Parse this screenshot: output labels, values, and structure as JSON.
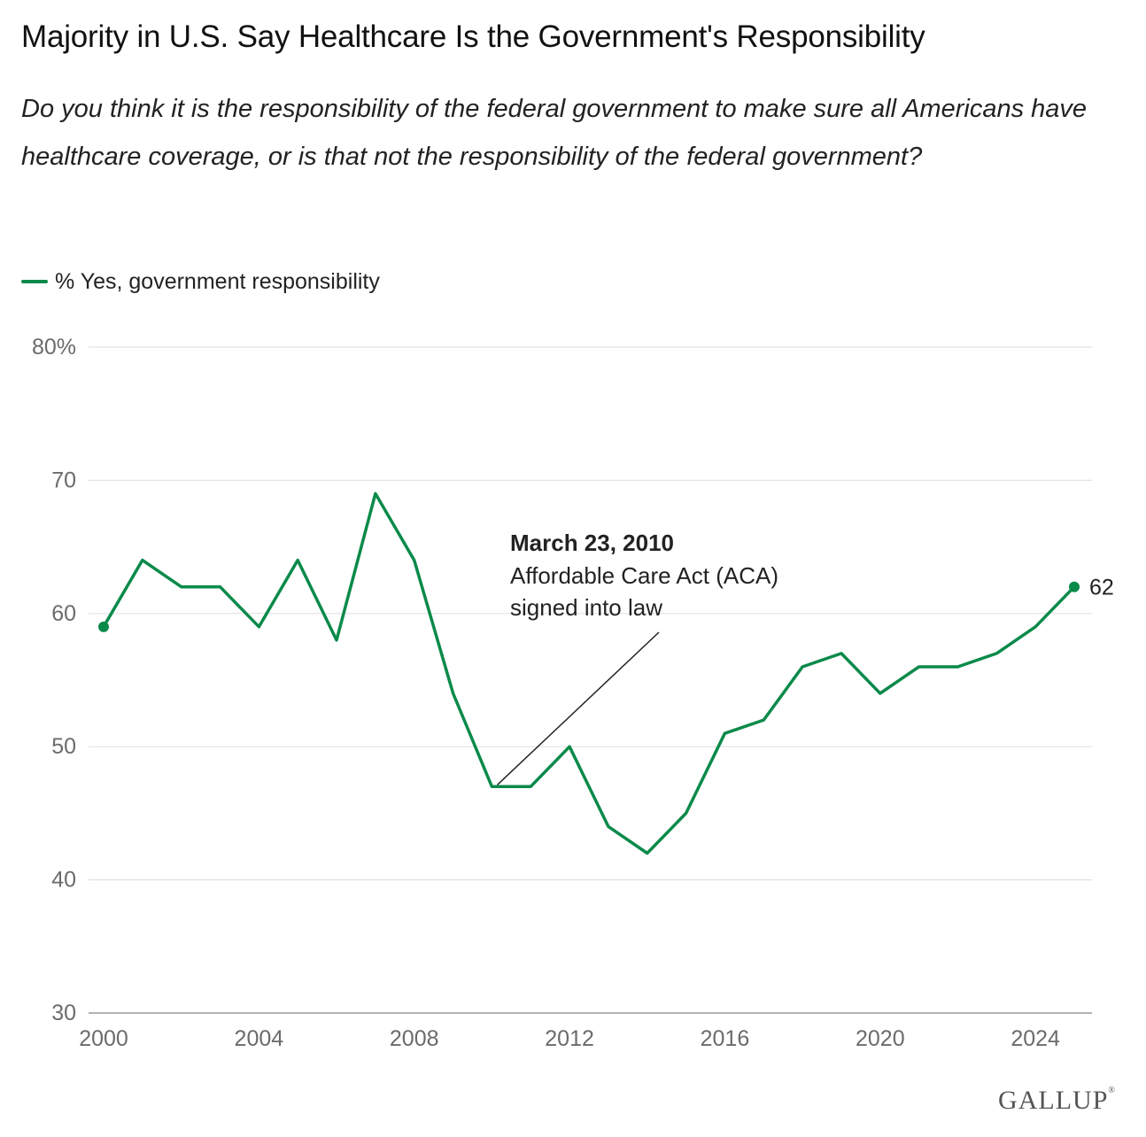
{
  "title": "Majority in U.S. Say Healthcare Is the Government's Responsibility",
  "subtitle": "Do you think it is the responsibility of the federal government to make sure all Americans have healthcare coverage, or is that not the responsibility of the federal government?",
  "legend": {
    "label": "% Yes, government responsibility",
    "color": "#0a8a4a"
  },
  "annotation": {
    "date": "March 23, 2010",
    "line1": "Affordable Care Act (ACA)",
    "line2": "signed into law"
  },
  "end_label": "62",
  "logo": "GALLUP",
  "chart_data": {
    "type": "line",
    "title": "Majority in U.S. Say Healthcare Is the Government's Responsibility",
    "xlabel": "",
    "ylabel": "",
    "xlim": [
      2000,
      2025
    ],
    "ylim": [
      30,
      80
    ],
    "x_ticks": [
      "2000",
      "2004",
      "2008",
      "2012",
      "2016",
      "2020",
      "2024"
    ],
    "y_ticks": [
      "30",
      "40",
      "50",
      "60",
      "70",
      "80%"
    ],
    "grid": true,
    "legend_position": "top-left",
    "series": [
      {
        "name": "% Yes, government responsibility",
        "color": "#0a8a4a",
        "x": [
          2000,
          2001,
          2002,
          2003,
          2004,
          2005,
          2006,
          2007,
          2008,
          2009,
          2010,
          2011,
          2012,
          2013,
          2014,
          2015,
          2016,
          2017,
          2018,
          2019,
          2020,
          2021,
          2022,
          2023,
          2024,
          2025
        ],
        "values": [
          59,
          64,
          62,
          62,
          59,
          64,
          58,
          69,
          64,
          54,
          47,
          47,
          50,
          44,
          42,
          45,
          51,
          52,
          56,
          57,
          54,
          56,
          56,
          57,
          59,
          62
        ]
      }
    ]
  }
}
